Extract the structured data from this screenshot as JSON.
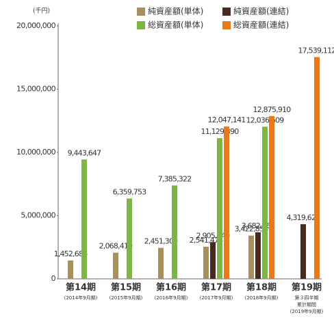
{
  "chart_data": {
    "type": "bar",
    "unit_label": "(千円)",
    "categories": [
      "第14期",
      "第15期",
      "第16期",
      "第17期",
      "第18期",
      "第19期"
    ],
    "category_sublabels": [
      [
        "(2014年9月期)"
      ],
      [
        "(2015年9月期)"
      ],
      [
        "(2016年9月期)"
      ],
      [
        "(2017年9月期)"
      ],
      [
        "(2018年9月期)"
      ],
      [
        "第３四半期",
        "累計期間",
        "(2019年9月期)"
      ]
    ],
    "series": [
      {
        "name": "純資産額(単体)",
        "color": "#a8905e",
        "values": [
          1452686,
          2068419,
          2451309,
          2541478,
          3422858,
          null
        ],
        "value_labels": [
          "1,452,686",
          "2,068,419",
          "2,451,309",
          "2,541,478",
          "3,422,858",
          null
        ]
      },
      {
        "name": "純資産額(連結)",
        "color": "#4a2a20",
        "values": [
          null,
          null,
          null,
          2905240,
          3682163,
          4319627
        ],
        "value_labels": [
          null,
          null,
          null,
          "2,905,240",
          "3,682,163",
          "4,319,627"
        ]
      },
      {
        "name": "総資産額(単体)",
        "color": "#7db646",
        "values": [
          9443647,
          6359753,
          7385322,
          11129390,
          12036609,
          null
        ],
        "value_labels": [
          "9,443,647",
          "6,359,753",
          "7,385,322",
          "11,129,390",
          "12,036,609",
          null
        ]
      },
      {
        "name": "総資産額(連結)",
        "color": "#e97a1c",
        "values": [
          null,
          null,
          null,
          12047141,
          12875910,
          17539112
        ],
        "value_labels": [
          null,
          null,
          null,
          "12,047,141",
          "12,875,910",
          "17,539,112"
        ]
      }
    ],
    "ylim": [
      0,
      20000000
    ],
    "yticks": [
      {
        "value": 0,
        "label": "0"
      },
      {
        "value": 5000000,
        "label": "5,000,000"
      },
      {
        "value": 10000000,
        "label": "10,000,000"
      },
      {
        "value": 15000000,
        "label": "15,000,000"
      },
      {
        "value": 20000000,
        "label": "20,000,000"
      }
    ]
  }
}
